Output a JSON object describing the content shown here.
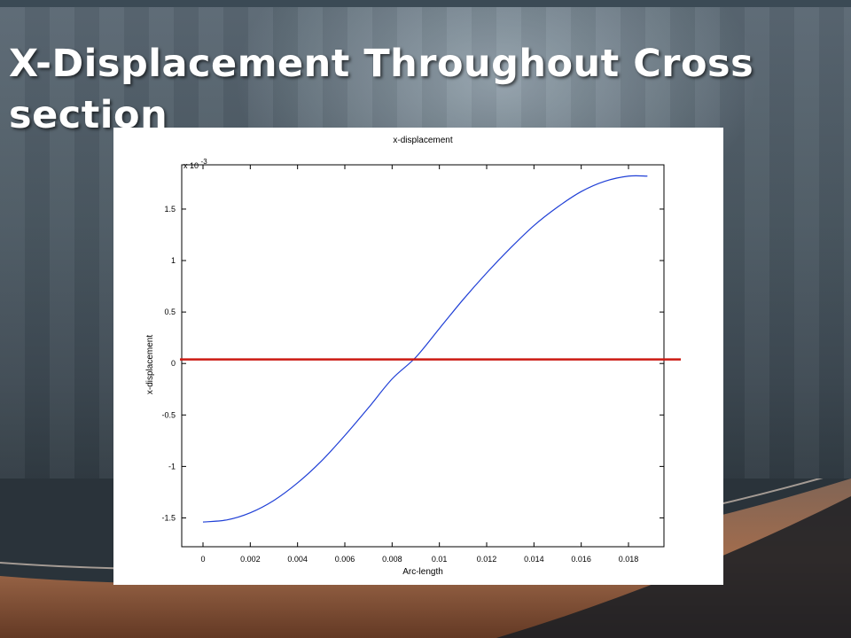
{
  "slide": {
    "title": "X-Displacement Throughout Cross section"
  },
  "colors": {
    "curve": "#1f3fd6",
    "reference_line": "#cc1a12",
    "title_text": "#ffffff"
  },
  "chart_data": {
    "type": "line",
    "title": "x-displacement",
    "xlabel": "Arc-length",
    "ylabel": "x-displacement",
    "y_multiplier_label": "x 10",
    "y_multiplier_exponent": "-3",
    "xlim": [
      -0.0009,
      0.0195
    ],
    "ylim": [
      -1.78,
      1.93
    ],
    "x_ticks": [
      0,
      0.002,
      0.004,
      0.006,
      0.008,
      0.01,
      0.012,
      0.014,
      0.016,
      0.018
    ],
    "x_tick_labels": [
      "0",
      "0.002",
      "0.004",
      "0.006",
      "0.008",
      "0.01",
      "0.012",
      "0.014",
      "0.016",
      "0.018"
    ],
    "y_ticks": [
      -1.5,
      -1,
      -0.5,
      0,
      0.5,
      1,
      1.5
    ],
    "y_tick_labels": [
      "-1.5",
      "-1",
      "-0.5",
      "0",
      "0.5",
      "1",
      "1.5"
    ],
    "grid": false,
    "series": [
      {
        "name": "",
        "color": "#1f3fd6",
        "x": [
          0,
          0.001,
          0.002,
          0.003,
          0.004,
          0.005,
          0.006,
          0.007,
          0.008,
          0.009,
          0.01,
          0.011,
          0.012,
          0.013,
          0.014,
          0.015,
          0.016,
          0.017,
          0.018,
          0.0188
        ],
        "y": [
          -1.54,
          -1.52,
          -1.45,
          -1.33,
          -1.16,
          -0.95,
          -0.7,
          -0.43,
          -0.15,
          0.06,
          0.34,
          0.62,
          0.88,
          1.12,
          1.34,
          1.52,
          1.67,
          1.77,
          1.82,
          1.82
        ]
      }
    ],
    "reference_lines": [
      {
        "orientation": "horizontal",
        "y": 0.04,
        "color": "#cc1a12"
      }
    ]
  }
}
